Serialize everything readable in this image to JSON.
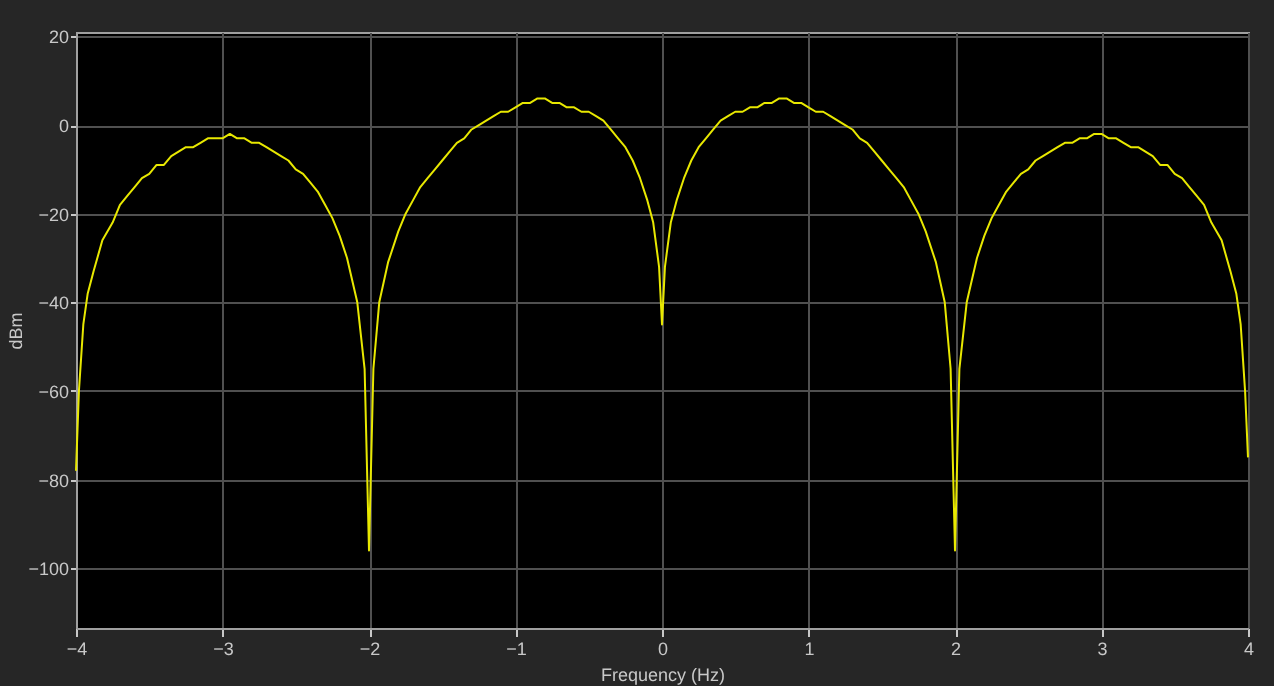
{
  "chart_data": {
    "type": "line",
    "xlabel": "Frequency (Hz)",
    "ylabel": "dBm",
    "xlim": [
      -4,
      4
    ],
    "ylim": [
      -113.5,
      21
    ],
    "xticks": [
      -4,
      -3,
      -2,
      -1,
      0,
      1,
      2,
      3,
      4
    ],
    "yticks": [
      20,
      0,
      -20,
      -40,
      -60,
      -80,
      -100
    ],
    "grid": true,
    "marker": "none",
    "line_style": "solid",
    "series": [
      {
        "color": "#e8e800",
        "x": [
          -4,
          -3.98,
          -3.95,
          -3.92,
          -3.88,
          -3.82,
          -3.75,
          -3.7,
          -3.65,
          -3.6,
          -3.55,
          -3.5,
          -3.45,
          -3.4,
          -3.35,
          -3.3,
          -3.25,
          -3.2,
          -3.15,
          -3.1,
          -3.05,
          -3,
          -2.95,
          -2.9,
          -2.85,
          -2.8,
          -2.75,
          -2.7,
          -2.65,
          -2.6,
          -2.55,
          -2.5,
          -2.45,
          -2.4,
          -2.35,
          -2.3,
          -2.25,
          -2.2,
          -2.15,
          -2.08,
          -2.03,
          -2,
          -1.97,
          -1.93,
          -1.87,
          -1.8,
          -1.75,
          -1.7,
          -1.65,
          -1.6,
          -1.55,
          -1.5,
          -1.45,
          -1.4,
          -1.35,
          -1.3,
          -1.25,
          -1.2,
          -1.15,
          -1.1,
          -1.05,
          -1,
          -0.95,
          -0.9,
          -0.85,
          -0.8,
          -0.75,
          -0.7,
          -0.65,
          -0.6,
          -0.55,
          -0.5,
          -0.45,
          -0.4,
          -0.35,
          -0.3,
          -0.25,
          -0.2,
          -0.15,
          -0.1,
          -0.06,
          -0.02,
          0,
          0.02,
          0.06,
          0.1,
          0.15,
          0.2,
          0.25,
          0.3,
          0.35,
          0.4,
          0.45,
          0.5,
          0.55,
          0.6,
          0.65,
          0.7,
          0.75,
          0.8,
          0.85,
          0.9,
          0.95,
          1,
          1.05,
          1.1,
          1.15,
          1.2,
          1.25,
          1.3,
          1.35,
          1.4,
          1.45,
          1.5,
          1.55,
          1.6,
          1.65,
          1.7,
          1.75,
          1.8,
          1.87,
          1.93,
          1.97,
          2,
          2.03,
          2.08,
          2.15,
          2.2,
          2.25,
          2.3,
          2.35,
          2.4,
          2.45,
          2.5,
          2.55,
          2.6,
          2.65,
          2.7,
          2.75,
          2.8,
          2.85,
          2.9,
          2.95,
          3,
          3.05,
          3.1,
          3.15,
          3.2,
          3.25,
          3.3,
          3.35,
          3.4,
          3.45,
          3.5,
          3.55,
          3.6,
          3.65,
          3.7,
          3.75,
          3.82,
          3.88,
          3.92,
          3.95,
          3.98,
          4
        ],
        "values": [
          -78,
          -60,
          -45,
          -38,
          -33,
          -26,
          -22,
          -18,
          -16,
          -14,
          -12,
          -11,
          -9,
          -9,
          -7,
          -6,
          -5,
          -5,
          -4,
          -3,
          -3,
          -3,
          -2,
          -3,
          -3,
          -4,
          -4,
          -5,
          -6,
          -7,
          -8,
          -10,
          -11,
          -13,
          -15,
          -18,
          -21,
          -25,
          -30,
          -40,
          -55,
          -96,
          -55,
          -40,
          -31,
          -24,
          -20,
          -17,
          -14,
          -12,
          -10,
          -8,
          -6,
          -4,
          -3,
          -1,
          0,
          1,
          2,
          3,
          3,
          4,
          5,
          5,
          6,
          6,
          5,
          5,
          4,
          4,
          3,
          3,
          2,
          1,
          -1,
          -3,
          -5,
          -8,
          -12,
          -17,
          -22,
          -32,
          -45,
          -32,
          -22,
          -17,
          -12,
          -8,
          -5,
          -3,
          -1,
          1,
          2,
          3,
          3,
          4,
          4,
          5,
          5,
          6,
          6,
          5,
          5,
          4,
          3,
          3,
          2,
          1,
          0,
          -1,
          -3,
          -4,
          -6,
          -8,
          -10,
          -12,
          -14,
          -17,
          -20,
          -24,
          -31,
          -40,
          -55,
          -96,
          -55,
          -40,
          -30,
          -25,
          -21,
          -18,
          -15,
          -13,
          -11,
          -10,
          -8,
          -7,
          -6,
          -5,
          -4,
          -4,
          -3,
          -3,
          -2,
          -2,
          -3,
          -3,
          -4,
          -5,
          -5,
          -6,
          -7,
          -9,
          -9,
          -11,
          -12,
          -14,
          -16,
          -18,
          -22,
          -26,
          -33,
          -38,
          -45,
          -60,
          -75
        ]
      }
    ]
  }
}
